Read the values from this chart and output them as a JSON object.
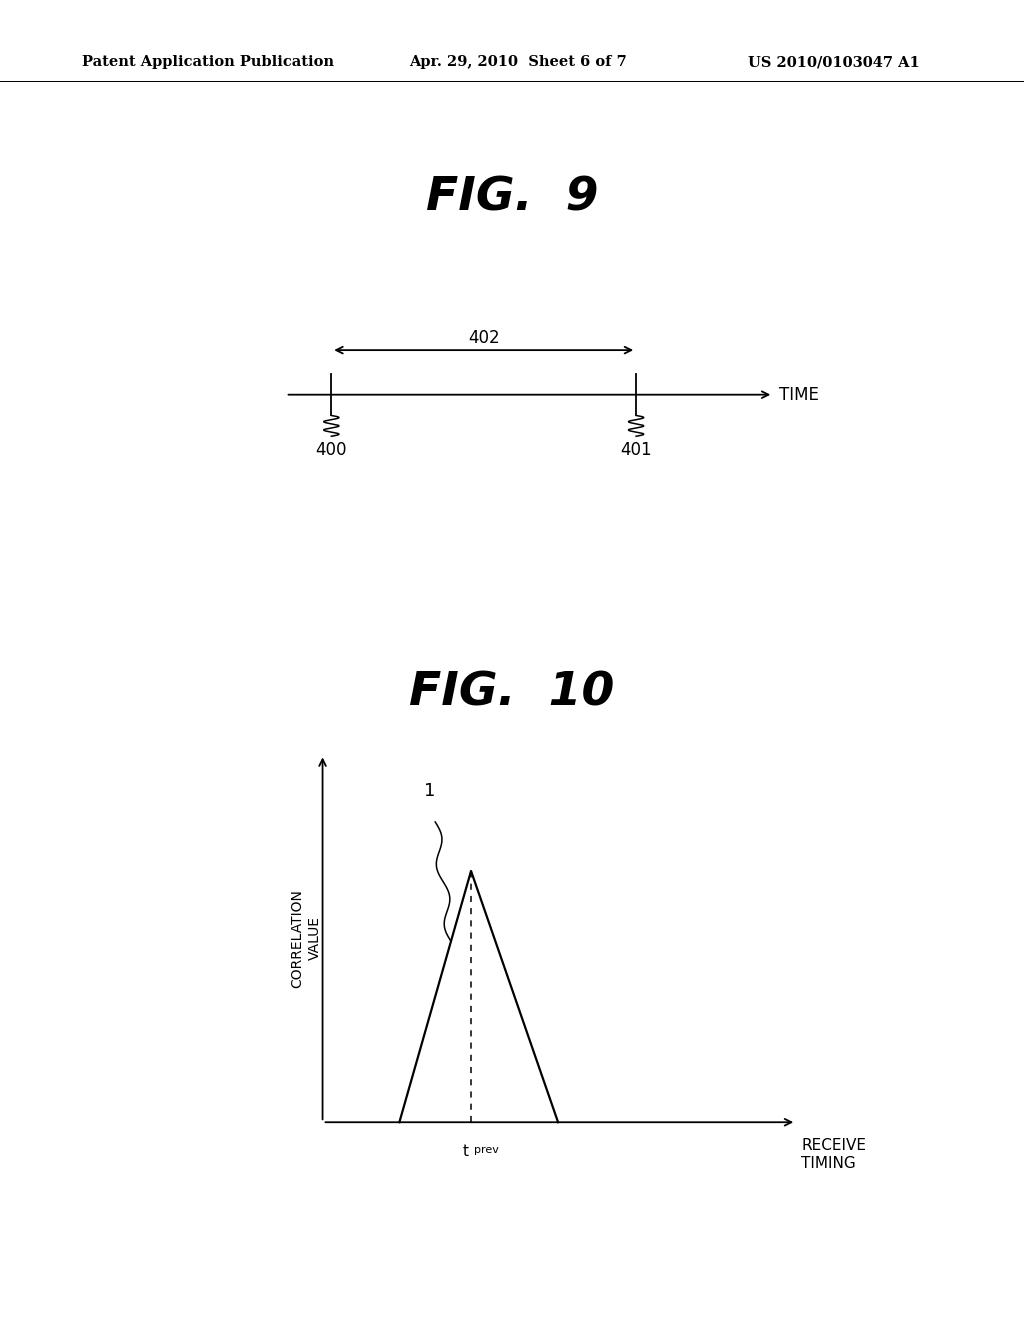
{
  "background_color": "#ffffff",
  "header_left": "Patent Application Publication",
  "header_center": "Apr. 29, 2010  Sheet 6 of 7",
  "header_right": "US 2010/0103047 A1",
  "fig9_title": "FIG.  9",
  "fig10_title": "FIG.  10",
  "fig9_label_400": "400",
  "fig9_label_401": "401",
  "fig9_label_402": "402",
  "fig9_label_time": "TIME",
  "fig10_ylabel": "CORRELATION\nVALUE",
  "fig10_xlabel": "RECEIVE\nTIMING",
  "fig10_tprev_t": "t",
  "fig10_tprev_sub": "prev",
  "fig10_label1": "1",
  "line_color": "#000000",
  "text_color": "#000000"
}
